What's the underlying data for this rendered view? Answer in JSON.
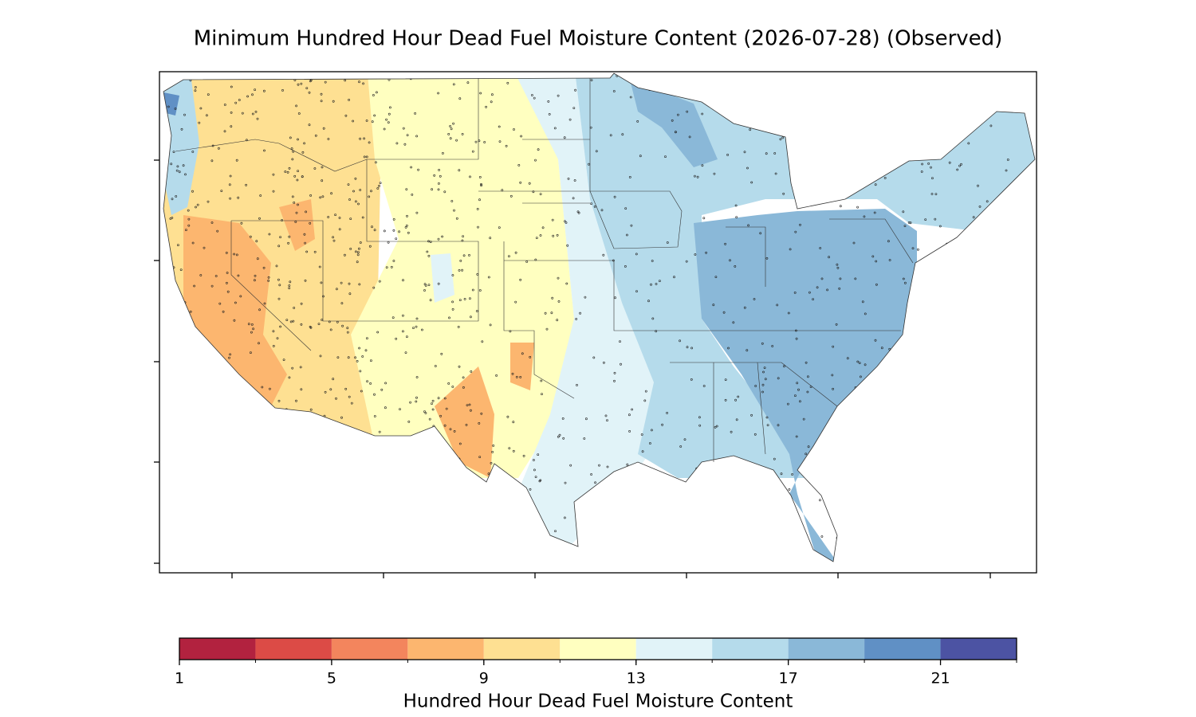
{
  "chart_data": {
    "type": "contour-map",
    "title": "Minimum Hundred Hour Dead Fuel Moisture Content (2026-07-28) (Observed)",
    "colorbar": {
      "label": "Hundred Hour Dead Fuel Moisture Content",
      "levels": [
        1,
        3,
        5,
        7,
        9,
        11,
        13,
        15,
        17,
        19,
        21,
        23
      ],
      "colors": [
        "#b2223f",
        "#dc4b46",
        "#f3855d",
        "#fcb66f",
        "#fee092",
        "#ffffc0",
        "#e1f3f8",
        "#b5dbeb",
        "#8ab8d8",
        "#6090c5",
        "#4c53a3"
      ],
      "ticks": [
        1,
        5,
        9,
        13,
        17,
        21
      ]
    }
  }
}
